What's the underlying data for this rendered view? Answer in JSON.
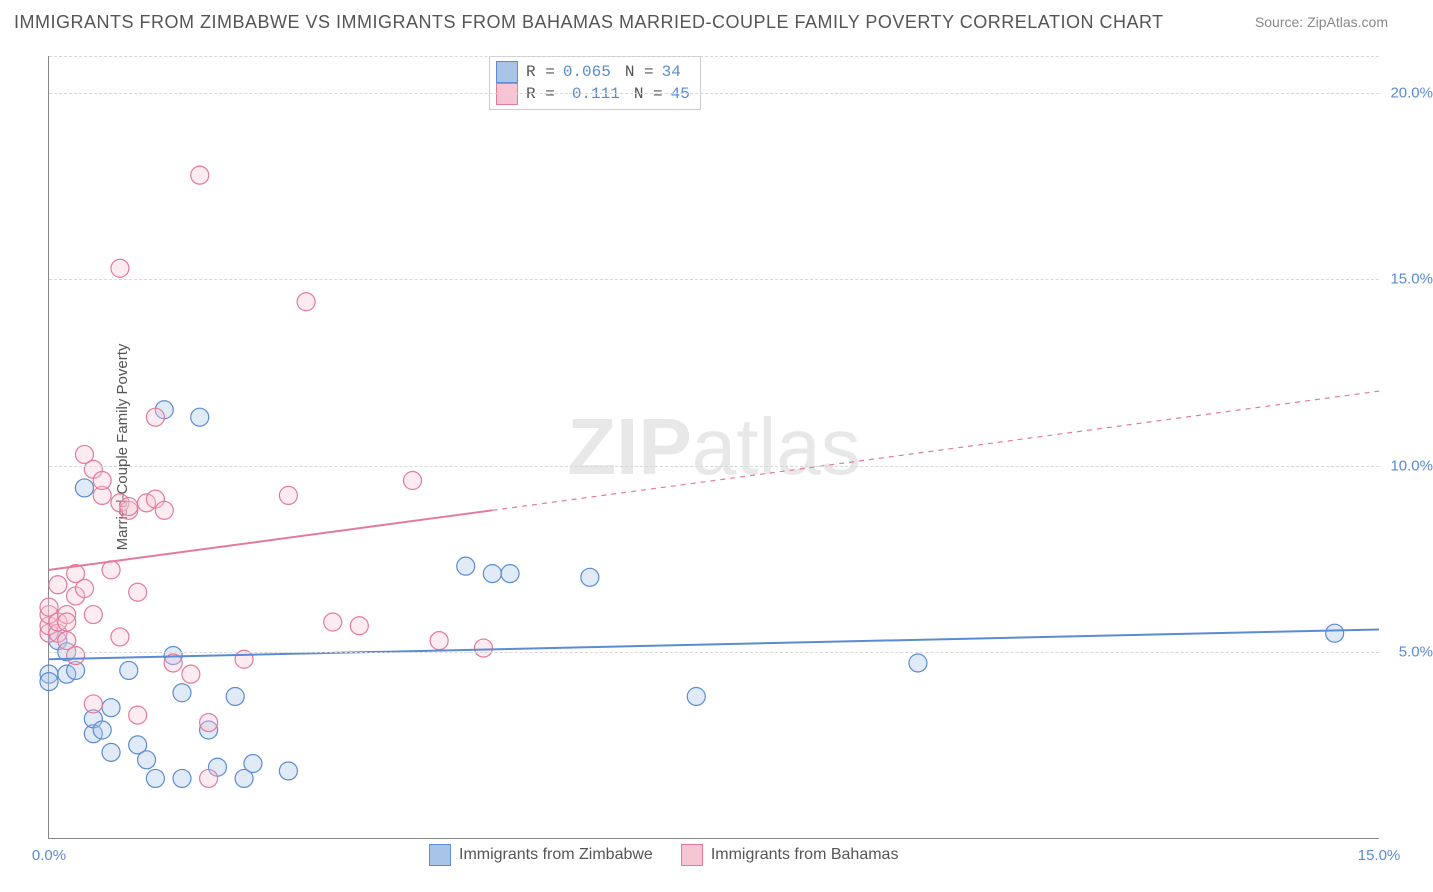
{
  "title": "IMMIGRANTS FROM ZIMBABWE VS IMMIGRANTS FROM BAHAMAS MARRIED-COUPLE FAMILY POVERTY CORRELATION CHART",
  "source": "Source: ZipAtlas.com",
  "ylabel": "Married-Couple Family Poverty",
  "watermark_zip": "ZIP",
  "watermark_atlas": "atlas",
  "chart": {
    "type": "scatter",
    "xlim": [
      0,
      15
    ],
    "ylim": [
      0,
      21
    ],
    "ytick_values": [
      5,
      10,
      15,
      20
    ],
    "ytick_labels": [
      "5.0%",
      "10.0%",
      "15.0%",
      "20.0%"
    ],
    "xtick_values": [
      0,
      15
    ],
    "xtick_labels": [
      "0.0%",
      "15.0%"
    ],
    "background_color": "#ffffff",
    "grid_color": "#d8d8d8",
    "axis_color": "#888888",
    "marker_radius": 9,
    "marker_stroke_width": 1.2,
    "marker_fill_opacity": 0.35,
    "trend_line_width": 2,
    "series": [
      {
        "name": "Immigrants from Zimbabwe",
        "color_stroke": "#5b8bd4",
        "color_fill": "#a8c5e8",
        "R": "0.065",
        "N": "34",
        "trend": {
          "x1": 0,
          "y1": 4.8,
          "x2": 15,
          "y2": 5.6,
          "solid_until_x": 15
        },
        "points": [
          [
            0.0,
            4.4
          ],
          [
            0.0,
            4.2
          ],
          [
            0.1,
            5.3
          ],
          [
            0.2,
            4.4
          ],
          [
            0.2,
            5.0
          ],
          [
            0.3,
            4.5
          ],
          [
            0.4,
            9.4
          ],
          [
            0.5,
            2.8
          ],
          [
            0.5,
            3.2
          ],
          [
            0.6,
            2.9
          ],
          [
            0.7,
            2.3
          ],
          [
            0.7,
            3.5
          ],
          [
            0.9,
            4.5
          ],
          [
            1.0,
            2.5
          ],
          [
            1.1,
            2.1
          ],
          [
            1.2,
            1.6
          ],
          [
            1.3,
            11.5
          ],
          [
            1.4,
            4.9
          ],
          [
            1.5,
            3.9
          ],
          [
            1.5,
            1.6
          ],
          [
            1.7,
            11.3
          ],
          [
            1.8,
            2.9
          ],
          [
            1.9,
            1.9
          ],
          [
            2.1,
            3.8
          ],
          [
            2.2,
            1.6
          ],
          [
            2.3,
            2.0
          ],
          [
            2.7,
            1.8
          ],
          [
            4.7,
            7.3
          ],
          [
            5.0,
            7.1
          ],
          [
            5.2,
            7.1
          ],
          [
            6.1,
            7.0
          ],
          [
            7.3,
            3.8
          ],
          [
            9.8,
            4.7
          ],
          [
            14.5,
            5.5
          ]
        ]
      },
      {
        "name": "Immigrants from Bahamas",
        "color_stroke": "#e47a9a",
        "color_fill": "#f5c5d4",
        "R": "0.111",
        "N": "45",
        "trend": {
          "x1": 0,
          "y1": 7.2,
          "x2": 15,
          "y2": 12.0,
          "solid_until_x": 5.0
        },
        "points": [
          [
            0.0,
            5.5
          ],
          [
            0.0,
            5.7
          ],
          [
            0.0,
            6.0
          ],
          [
            0.0,
            6.2
          ],
          [
            0.1,
            5.5
          ],
          [
            0.1,
            6.8
          ],
          [
            0.1,
            5.8
          ],
          [
            0.2,
            6.0
          ],
          [
            0.2,
            5.8
          ],
          [
            0.2,
            5.3
          ],
          [
            0.3,
            6.5
          ],
          [
            0.3,
            7.1
          ],
          [
            0.3,
            4.9
          ],
          [
            0.4,
            10.3
          ],
          [
            0.4,
            6.7
          ],
          [
            0.5,
            9.9
          ],
          [
            0.5,
            6.0
          ],
          [
            0.5,
            3.6
          ],
          [
            0.6,
            9.2
          ],
          [
            0.6,
            9.6
          ],
          [
            0.7,
            7.2
          ],
          [
            0.8,
            15.3
          ],
          [
            0.8,
            9.0
          ],
          [
            0.8,
            5.4
          ],
          [
            0.9,
            8.8
          ],
          [
            0.9,
            8.9
          ],
          [
            1.0,
            6.6
          ],
          [
            1.0,
            3.3
          ],
          [
            1.1,
            9.0
          ],
          [
            1.2,
            9.1
          ],
          [
            1.2,
            11.3
          ],
          [
            1.3,
            8.8
          ],
          [
            1.4,
            4.7
          ],
          [
            1.6,
            4.4
          ],
          [
            1.7,
            17.8
          ],
          [
            1.8,
            3.1
          ],
          [
            1.8,
            1.6
          ],
          [
            2.2,
            4.8
          ],
          [
            2.7,
            9.2
          ],
          [
            2.9,
            14.4
          ],
          [
            3.2,
            5.8
          ],
          [
            3.5,
            5.7
          ],
          [
            4.1,
            9.6
          ],
          [
            4.4,
            5.3
          ],
          [
            4.9,
            5.1
          ]
        ]
      }
    ]
  },
  "legend_top": {
    "R_label": "R =",
    "N_label": "N ="
  }
}
